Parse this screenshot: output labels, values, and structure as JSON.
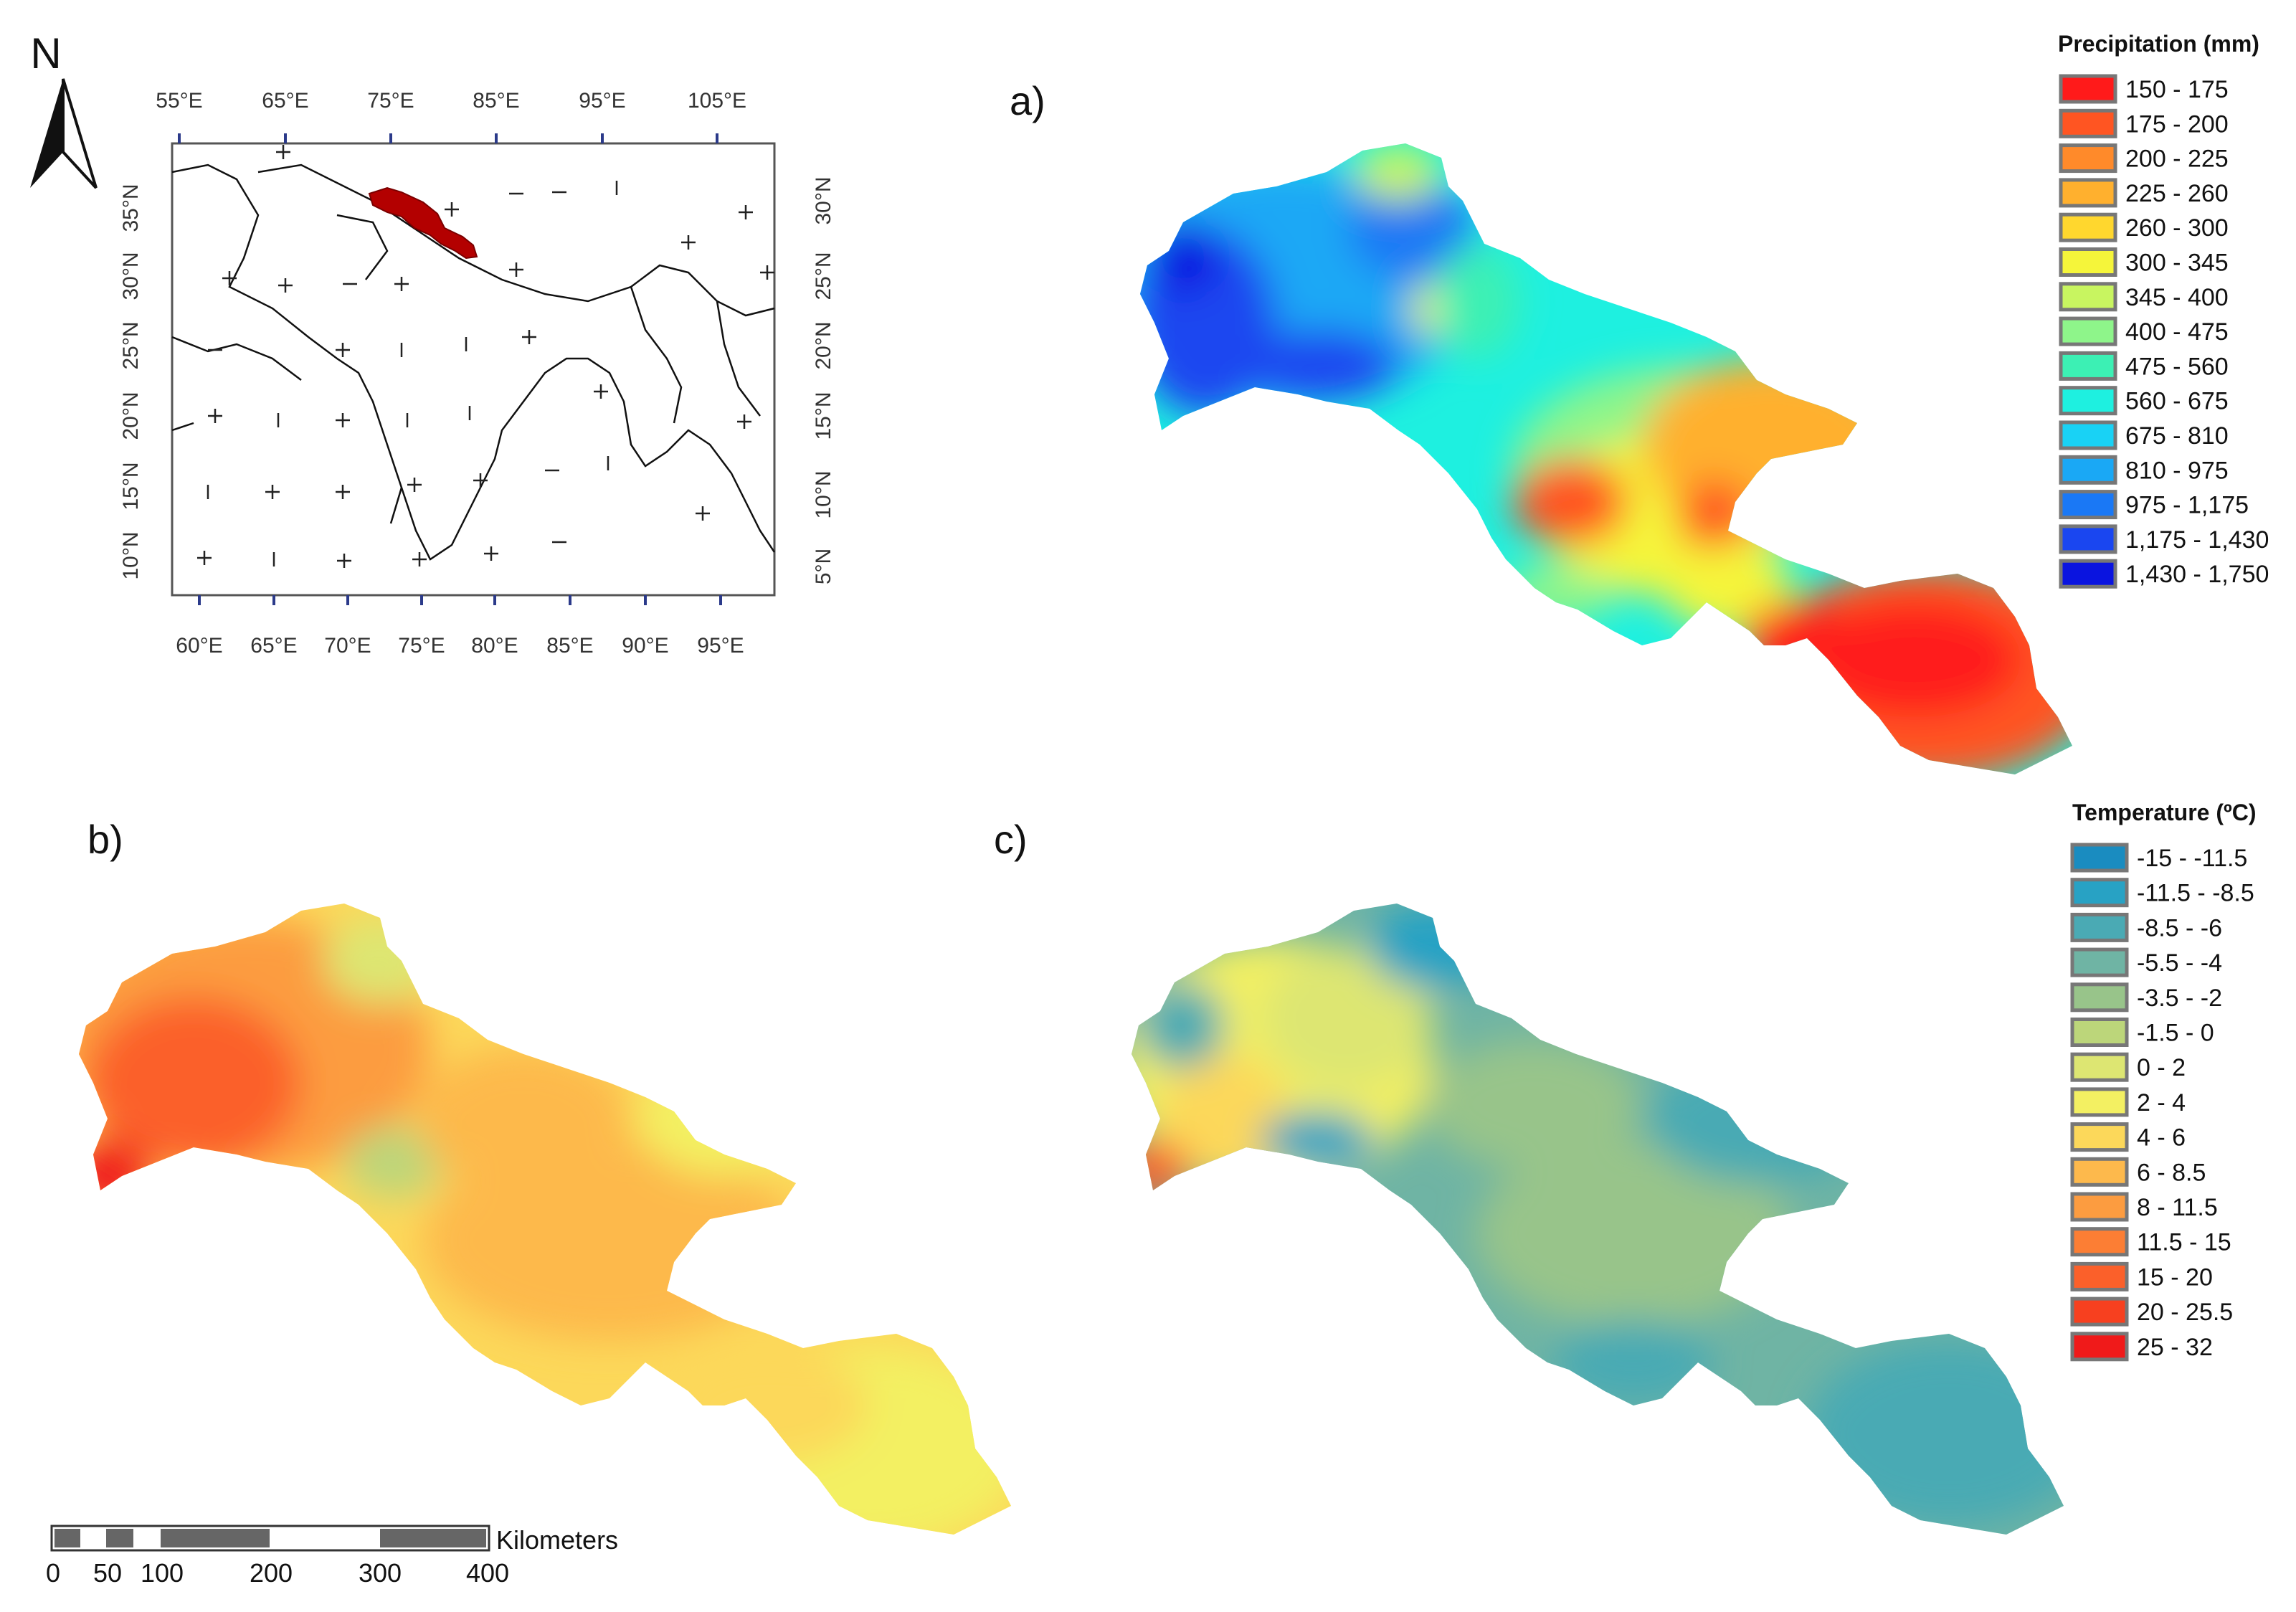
{
  "north_label": "N",
  "inset": {
    "top_ticks": [
      "55°E",
      "65°E",
      "75°E",
      "85°E",
      "95°E",
      "105°E"
    ],
    "bottom_ticks": [
      "60°E",
      "65°E",
      "70°E",
      "75°E",
      "80°E",
      "85°E",
      "90°E",
      "95°E"
    ],
    "left_ticks": [
      "35°N",
      "30°N",
      "25°N",
      "20°N",
      "15°N",
      "10°N"
    ],
    "right_ticks": [
      "30°N",
      "25°N",
      "20°N",
      "15°N",
      "10°N",
      "5°N"
    ],
    "highlight_color": "#b30000"
  },
  "panels": {
    "a": "a)",
    "b": "b)",
    "c": "c)"
  },
  "precipitation_legend": {
    "title": "Precipitation (mm)",
    "items": [
      {
        "label": "150 - 175",
        "color": "#ff1a1a"
      },
      {
        "label": "175 - 200",
        "color": "#ff5522"
      },
      {
        "label": "200 - 225",
        "color": "#ff8a2a"
      },
      {
        "label": "225 - 260",
        "color": "#ffb02e"
      },
      {
        "label": "260 - 300",
        "color": "#ffd72e"
      },
      {
        "label": "300 - 345",
        "color": "#f5f53a"
      },
      {
        "label": "345 - 400",
        "color": "#c8f560"
      },
      {
        "label": "400 - 475",
        "color": "#8ef58a"
      },
      {
        "label": "475 - 560",
        "color": "#3cf0b4"
      },
      {
        "label": "560 - 675",
        "color": "#1ef0e0"
      },
      {
        "label": "675 - 810",
        "color": "#19d2f5"
      },
      {
        "label": "810 - 975",
        "color": "#1aa8f5"
      },
      {
        "label": "975 - 1,175",
        "color": "#1a78f5"
      },
      {
        "label": "1,175 - 1,430",
        "color": "#1a46f0"
      },
      {
        "label": "1,430 - 1,750",
        "color": "#0a14e0"
      }
    ]
  },
  "temperature_legend": {
    "title": "Temperature (ºC)",
    "items": [
      {
        "label": "-15 - -11.5",
        "color": "#1a8cc0"
      },
      {
        "label": "-11.5 - -8.5",
        "color": "#28a2c4"
      },
      {
        "label": "-8.5 - -6",
        "color": "#4aaab4"
      },
      {
        "label": "-5.5 - -4",
        "color": "#6fb4a4"
      },
      {
        "label": "-3.5 - -2",
        "color": "#98c48a"
      },
      {
        "label": "-1.5 - 0",
        "color": "#bcd67a"
      },
      {
        "label": "0 - 2",
        "color": "#dde672"
      },
      {
        "label": "2 - 4",
        "color": "#f3f062"
      },
      {
        "label": "4 - 6",
        "color": "#fcd85a"
      },
      {
        "label": "6 - 8.5",
        "color": "#fdb94c"
      },
      {
        "label": "8 - 11.5",
        "color": "#fc9c40"
      },
      {
        "label": "11.5 - 15",
        "color": "#fc7e34"
      },
      {
        "label": "15 - 20",
        "color": "#fb602a"
      },
      {
        "label": "20 - 25.5",
        "color": "#f7401f"
      },
      {
        "label": "25 - 32",
        "color": "#f01a1a"
      }
    ]
  },
  "scale_bar": {
    "unit": "Kilometers",
    "ticks": [
      "0",
      "50",
      "100",
      "200",
      "300",
      "400"
    ]
  }
}
